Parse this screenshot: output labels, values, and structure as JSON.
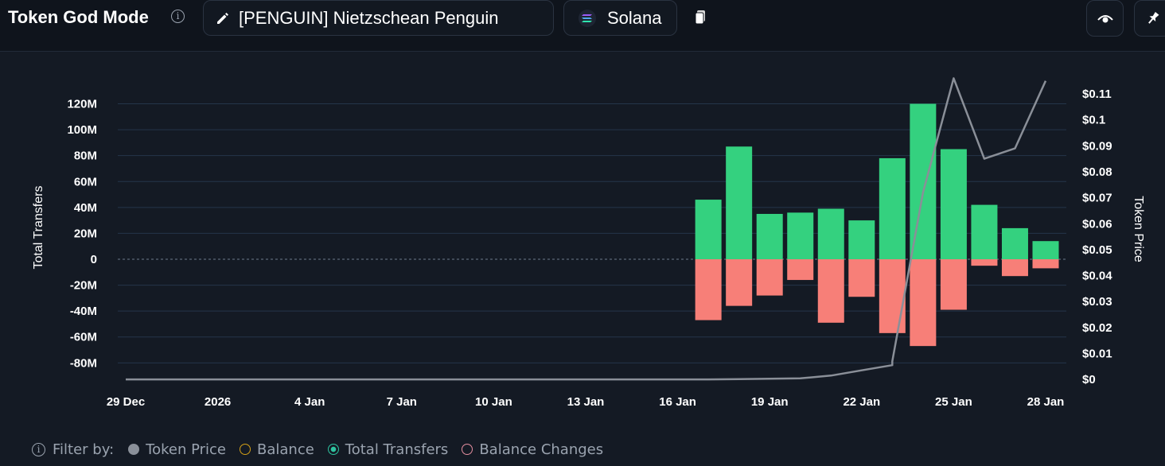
{
  "header": {
    "title": "Token God Mode",
    "token_label": "[PENGUIN] Nietzschean Penguin",
    "chain_label": "Solana"
  },
  "legend": {
    "filter_label": "Filter by:",
    "items": [
      {
        "label": "Token Price",
        "color": "#8a9099",
        "style": "filled"
      },
      {
        "label": "Balance",
        "color": "#d4a017",
        "style": "outline"
      },
      {
        "label": "Total Transfers",
        "color": "#2ec4a0",
        "style": "selected"
      },
      {
        "label": "Balance Changes",
        "color": "#e58fa0",
        "style": "outline"
      }
    ]
  },
  "colors": {
    "positive": "#34d17f",
    "negative": "#f77f78",
    "price_line": "#8a8f98",
    "grid": "#24354a",
    "background": "#141a24"
  },
  "chart_data": {
    "type": "bar",
    "xlabel": "",
    "ylabel": "Total Transfers",
    "y2label": "Token Price",
    "ylim": [
      -80,
      130
    ],
    "y2lim": [
      0,
      0.117
    ],
    "yticks": [
      "120M",
      "100M",
      "80M",
      "60M",
      "40M",
      "20M",
      "0",
      "-20M",
      "-40M",
      "-60M",
      "-80M"
    ],
    "y2ticks": [
      "$0.11",
      "$0.1",
      "$0.09",
      "$0.08",
      "$0.07",
      "$0.06",
      "$0.05",
      "$0.04",
      "$0.03",
      "$0.02",
      "$0.01",
      "$0"
    ],
    "xticks": [
      "29 Dec",
      "2026",
      "4 Jan",
      "7 Jan",
      "10 Jan",
      "13 Jan",
      "16 Jan",
      "19 Jan",
      "22 Jan",
      "25 Jan",
      "28 Jan"
    ],
    "grid": true,
    "series": [
      {
        "name": "Total Transfers",
        "x": [
          "17 Jan",
          "18 Jan",
          "19 Jan",
          "20 Jan",
          "21 Jan",
          "22 Jan",
          "23 Jan",
          "24 Jan",
          "25 Jan",
          "26 Jan",
          "27 Jan",
          "28 Jan"
        ],
        "inflow": [
          46,
          87,
          35,
          36,
          39,
          30,
          78,
          120,
          85,
          42,
          24,
          14
        ],
        "outflow": [
          -47,
          -36,
          -28,
          -16,
          -49,
          -29,
          -57,
          -67,
          -39,
          -5,
          -13,
          -7
        ]
      },
      {
        "name": "Token Price",
        "x": [
          "29 Dec",
          "16 Jan",
          "17 Jan",
          "18 Jan",
          "19 Jan",
          "20 Jan",
          "21 Jan",
          "22 Jan",
          "22.5 Jan",
          "23 Jan",
          "24 Jan",
          "25 Jan",
          "26 Jan",
          "27 Jan",
          "28 Jan"
        ],
        "values": [
          0,
          0,
          0,
          0.0001,
          0.0003,
          0.0004,
          0.0015,
          0.0035,
          0.0055,
          0.007,
          0.072,
          0.116,
          0.085,
          0.089,
          0.115
        ]
      }
    ]
  }
}
